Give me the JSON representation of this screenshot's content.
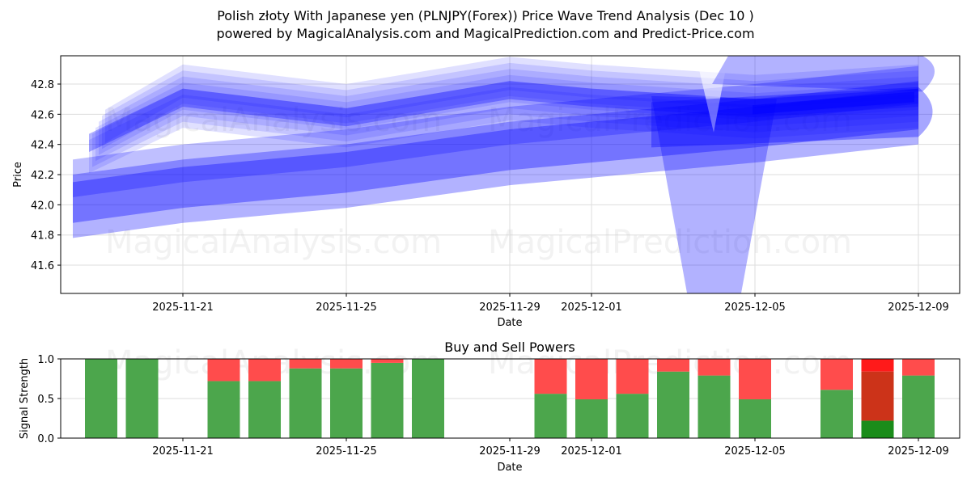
{
  "header": {
    "title": "Polish złoty With Japanese yen (PLNJPY(Forex)) Price Wave Trend Analysis (Dec 10 )",
    "subtitle": "powered by MagicalAnalysis.com and MagicalPrediction.com and Predict-Price.com"
  },
  "watermarks": [
    "MagicalAnalysis.com",
    "MagicalPrediction.com"
  ],
  "colors": {
    "wave": "#0000ff",
    "buy": "#4ca64c",
    "sell": "#ff4c4c",
    "buy_dark": "#1a8c1a",
    "sell_dark": "#cc3319",
    "sell_bright": "#ff1a1a",
    "grid": "#dddddd"
  },
  "chart_data": [
    {
      "type": "area",
      "title": "Polish złoty With Japanese yen (PLNJPY(Forex)) Price Wave Trend Analysis (Dec 10 )",
      "xlabel": "Date",
      "ylabel": "Price",
      "ylim": [
        41.41,
        42.99
      ],
      "yticks": [
        "41.6",
        "41.8",
        "42.0",
        "42.2",
        "42.4",
        "42.6",
        "42.8"
      ],
      "xticks": [
        "2025-11-21",
        "2025-11-25",
        "2025-11-29",
        "2025-12-01",
        "2025-12-05",
        "2025-12-09"
      ],
      "grid": true,
      "description": "Overlapping semi-transparent blue wave bands showing projected price trend, rising from ~42.1-42.5 to ~42.6-42.8",
      "series": [
        {
          "name": "lower band",
          "x": [
            "2025-11-18",
            "2025-11-21",
            "2025-11-25",
            "2025-11-29",
            "2025-12-01",
            "2025-12-05",
            "2025-12-09"
          ],
          "values": [
            42.0,
            42.1,
            42.2,
            42.35,
            42.4,
            42.5,
            42.62
          ]
        },
        {
          "name": "upper band",
          "x": [
            "2025-11-18",
            "2025-11-21",
            "2025-11-25",
            "2025-11-29",
            "2025-12-01",
            "2025-12-05",
            "2025-12-09"
          ],
          "values": [
            42.45,
            42.75,
            42.62,
            42.8,
            42.75,
            42.68,
            42.75
          ]
        },
        {
          "name": "spike",
          "x": [
            "2025-12-03",
            "2025-12-04",
            "2025-12-05"
          ],
          "values": [
            42.7,
            41.41,
            42.7
          ]
        }
      ]
    },
    {
      "type": "bar",
      "title": "Buy and Sell Powers",
      "xlabel": "Date",
      "ylabel": "Signal Strength",
      "ylim": [
        0,
        1
      ],
      "yticks": [
        "0.0",
        "0.5",
        "1.0"
      ],
      "xticks": [
        "2025-11-21",
        "2025-11-25",
        "2025-11-29",
        "2025-12-01",
        "2025-12-05",
        "2025-12-09"
      ],
      "categories": [
        "2025-11-19",
        "2025-11-20",
        "2025-11-22",
        "2025-11-23",
        "2025-11-24",
        "2025-11-25",
        "2025-11-26",
        "2025-11-27",
        "2025-11-30",
        "2025-12-01",
        "2025-12-02",
        "2025-12-03",
        "2025-12-04",
        "2025-12-05",
        "2025-12-07",
        "2025-12-08",
        "2025-12-09"
      ],
      "series": [
        {
          "name": "Buy",
          "values": [
            1.0,
            1.0,
            0.72,
            0.72,
            0.88,
            0.88,
            0.95,
            1.0,
            0.56,
            0.49,
            0.56,
            0.84,
            0.79,
            0.49,
            0.61,
            0.22,
            0.79
          ]
        },
        {
          "name": "Sell",
          "values": [
            0.0,
            0.0,
            0.28,
            0.28,
            0.12,
            0.12,
            0.05,
            0.0,
            0.44,
            0.51,
            0.44,
            0.16,
            0.21,
            0.51,
            0.39,
            0.78,
            0.21
          ]
        }
      ]
    }
  ]
}
